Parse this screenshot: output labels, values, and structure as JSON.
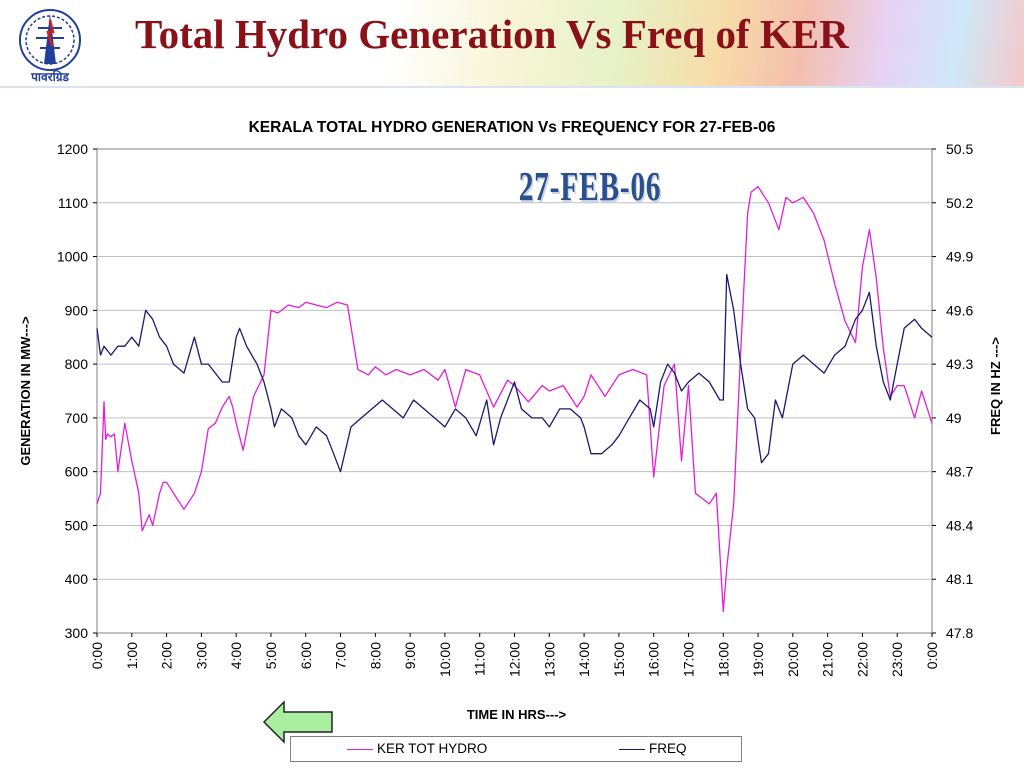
{
  "slide": {
    "title": "Total Hydro Generation Vs Freq of KER",
    "logo_text": "पावरग्रिड",
    "date_stamp": "27-FEB-06"
  },
  "colors": {
    "title": "#8b1119",
    "generation": "#e020d8",
    "frequency": "#1a1a6e",
    "logo": "#1f3f9a"
  },
  "icons": {
    "logo": "powergrid-logo-icon",
    "nav": "back-arrow-icon"
  },
  "chart_data": {
    "type": "line",
    "title": "KERALA TOTAL HYDRO GENERATION Vs FREQUENCY FOR 27-FEB-06",
    "xlabel": "TIME IN HRS--->",
    "ylabel": "GENERATION IN MW--->",
    "y2label": "FREQ IN HZ --->",
    "xlim": [
      0,
      24
    ],
    "ylim": [
      300,
      1200
    ],
    "y2lim": [
      47.8,
      50.5
    ],
    "x_ticks": [
      "0:00",
      "1:00",
      "2:00",
      "3:00",
      "4:00",
      "5:00",
      "6:00",
      "7:00",
      "8:00",
      "9:00",
      "10:00",
      "11:00",
      "12:00",
      "13:00",
      "14:00",
      "15:00",
      "16:00",
      "17:00",
      "18:00",
      "19:00",
      "20:00",
      "21:00",
      "22:00",
      "23:00",
      "0:00"
    ],
    "y_ticks": [
      300,
      400,
      500,
      600,
      700,
      800,
      900,
      1000,
      1100,
      1200
    ],
    "y2_ticks": [
      "47.8",
      "48.1",
      "48.4",
      "48.7",
      "49",
      "49.3",
      "49.6",
      "49.9",
      "50.2",
      "50.5"
    ],
    "grid": "horizontal",
    "legend_position": "bottom",
    "series": [
      {
        "name": "KER TOT HYDRO",
        "axis": "left",
        "x": [
          0,
          0.1,
          0.2,
          0.25,
          0.3,
          0.4,
          0.5,
          0.6,
          0.8,
          1.0,
          1.2,
          1.3,
          1.5,
          1.6,
          1.8,
          1.9,
          2.0,
          2.1,
          2.3,
          2.5,
          2.8,
          3.0,
          3.2,
          3.4,
          3.6,
          3.8,
          3.9,
          4.0,
          4.2,
          4.5,
          4.8,
          5.0,
          5.2,
          5.5,
          5.8,
          6.0,
          6.3,
          6.6,
          6.9,
          7.2,
          7.5,
          7.8,
          8.0,
          8.3,
          8.6,
          9.0,
          9.4,
          9.8,
          10.0,
          10.3,
          10.6,
          11.0,
          11.4,
          11.8,
          12.0,
          12.4,
          12.8,
          13.0,
          13.4,
          13.8,
          14.0,
          14.2,
          14.6,
          15.0,
          15.4,
          15.8,
          16.0,
          16.3,
          16.6,
          16.8,
          17.0,
          17.2,
          17.4,
          17.6,
          17.8,
          18.0,
          18.1,
          18.3,
          18.5,
          18.7,
          18.8,
          19.0,
          19.3,
          19.6,
          19.8,
          20.0,
          20.3,
          20.6,
          20.9,
          21.2,
          21.5,
          21.8,
          22.0,
          22.2,
          22.4,
          22.6,
          22.8,
          23.0,
          23.2,
          23.5,
          23.7,
          24.0
        ],
        "y": [
          540,
          560,
          730,
          660,
          670,
          665,
          670,
          600,
          690,
          620,
          560,
          490,
          520,
          500,
          560,
          580,
          580,
          570,
          550,
          530,
          560,
          600,
          680,
          690,
          720,
          740,
          720,
          690,
          640,
          740,
          780,
          900,
          895,
          910,
          905,
          915,
          910,
          905,
          915,
          910,
          790,
          780,
          795,
          780,
          790,
          780,
          790,
          770,
          790,
          720,
          790,
          780,
          720,
          770,
          760,
          730,
          760,
          750,
          760,
          720,
          740,
          780,
          740,
          780,
          790,
          780,
          590,
          760,
          800,
          620,
          760,
          560,
          550,
          540,
          560,
          340,
          420,
          540,
          820,
          1080,
          1120,
          1130,
          1100,
          1050,
          1110,
          1100,
          1110,
          1080,
          1030,
          950,
          880,
          840,
          980,
          1050,
          960,
          830,
          740,
          760,
          760,
          700,
          750,
          690
        ]
      },
      {
        "name": "FREQ",
        "axis": "right",
        "x": [
          0,
          0.1,
          0.2,
          0.4,
          0.6,
          0.8,
          1.0,
          1.2,
          1.4,
          1.6,
          1.8,
          2.0,
          2.2,
          2.5,
          2.8,
          3.0,
          3.2,
          3.4,
          3.6,
          3.8,
          4.0,
          4.1,
          4.3,
          4.6,
          4.8,
          5.0,
          5.1,
          5.3,
          5.6,
          5.8,
          6.0,
          6.3,
          6.6,
          6.8,
          7.0,
          7.3,
          7.6,
          7.9,
          8.2,
          8.5,
          8.8,
          9.1,
          9.4,
          9.7,
          10.0,
          10.3,
          10.6,
          10.9,
          11.2,
          11.4,
          11.6,
          11.9,
          12.0,
          12.2,
          12.5,
          12.8,
          13.0,
          13.3,
          13.6,
          13.9,
          14.0,
          14.2,
          14.5,
          14.8,
          15.0,
          15.3,
          15.6,
          15.9,
          16.0,
          16.2,
          16.4,
          16.6,
          16.8,
          17.0,
          17.3,
          17.6,
          17.9,
          18.0,
          18.1,
          18.3,
          18.5,
          18.7,
          18.9,
          19.1,
          19.3,
          19.5,
          19.7,
          20.0,
          20.3,
          20.6,
          20.9,
          21.2,
          21.5,
          21.8,
          22.0,
          22.2,
          22.4,
          22.6,
          22.8,
          23.0,
          23.2,
          23.5,
          23.7,
          24.0
        ],
        "y": [
          49.5,
          49.35,
          49.4,
          49.35,
          49.4,
          49.4,
          49.45,
          49.4,
          49.6,
          49.55,
          49.45,
          49.4,
          49.3,
          49.25,
          49.45,
          49.3,
          49.3,
          49.25,
          49.2,
          49.2,
          49.45,
          49.5,
          49.4,
          49.3,
          49.2,
          49.05,
          48.95,
          49.05,
          49.0,
          48.9,
          48.85,
          48.95,
          48.9,
          48.8,
          48.7,
          48.95,
          49.0,
          49.05,
          49.1,
          49.05,
          49.0,
          49.1,
          49.05,
          49.0,
          48.95,
          49.05,
          49.0,
          48.9,
          49.1,
          48.85,
          49.0,
          49.15,
          49.2,
          49.05,
          49.0,
          49.0,
          48.95,
          49.05,
          49.05,
          49.0,
          48.95,
          48.8,
          48.8,
          48.85,
          48.9,
          49.0,
          49.1,
          49.05,
          48.95,
          49.2,
          49.3,
          49.25,
          49.15,
          49.2,
          49.25,
          49.2,
          49.1,
          49.1,
          49.8,
          49.6,
          49.3,
          49.05,
          49.0,
          48.75,
          48.8,
          49.1,
          49.0,
          49.3,
          49.35,
          49.3,
          49.25,
          49.35,
          49.4,
          49.55,
          49.6,
          49.7,
          49.4,
          49.2,
          49.1,
          49.3,
          49.5,
          49.55,
          49.5,
          49.45
        ]
      }
    ]
  }
}
